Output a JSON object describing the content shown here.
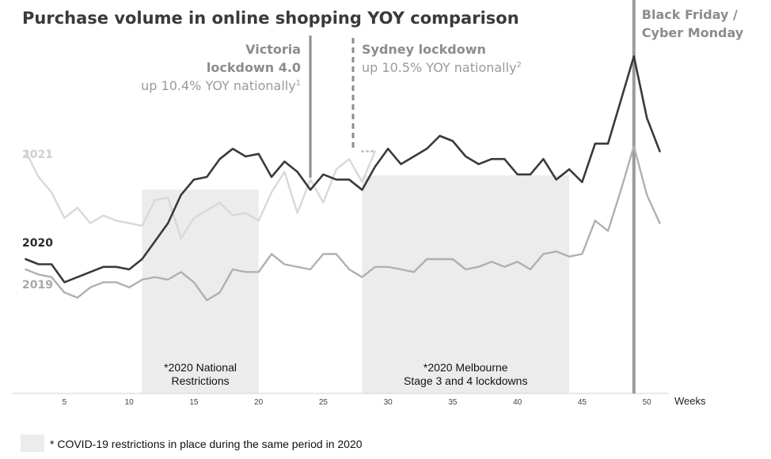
{
  "chart_data": {
    "type": "line",
    "title": "Purchase volume in online shopping YOY comparison",
    "xlabel": "Weeks",
    "ylabel": "",
    "x_ticks": [
      5,
      10,
      15,
      20,
      25,
      30,
      35,
      40,
      45,
      50
    ],
    "xlim": [
      1,
      52
    ],
    "ylim": [
      0,
      100
    ],
    "grid": false,
    "series": [
      {
        "name": "2019",
        "label": "2019",
        "color": "#b0b0b0",
        "x": [
          2,
          3,
          4,
          5,
          6,
          7,
          8,
          9,
          10,
          11,
          12,
          13,
          14,
          15,
          16,
          17,
          18,
          19,
          20,
          21,
          22,
          23,
          24,
          25,
          26,
          27,
          28,
          29,
          30,
          31,
          32,
          33,
          34,
          35,
          36,
          37,
          38,
          39,
          40,
          41,
          42,
          43,
          44,
          45,
          46,
          47,
          48,
          49,
          50,
          51
        ],
        "values": [
          36,
          34,
          33,
          27,
          25,
          29,
          31,
          31,
          29,
          32,
          33,
          32,
          35,
          31,
          24,
          27,
          36,
          35,
          35,
          42,
          38,
          37,
          36,
          42,
          42,
          36,
          33,
          37,
          37,
          36,
          35,
          40,
          40,
          40,
          36,
          37,
          39,
          37,
          39,
          36,
          42,
          43,
          41,
          42,
          55,
          51,
          67,
          84,
          65,
          54
        ]
      },
      {
        "name": "2020",
        "label": "2020",
        "color": "#3a3a3a",
        "x": [
          2,
          3,
          4,
          5,
          6,
          7,
          8,
          9,
          10,
          11,
          12,
          13,
          14,
          15,
          16,
          17,
          18,
          19,
          20,
          21,
          22,
          23,
          24,
          25,
          26,
          27,
          28,
          29,
          30,
          31,
          32,
          33,
          34,
          35,
          36,
          37,
          38,
          39,
          40,
          41,
          42,
          43,
          44,
          45,
          46,
          47,
          48,
          49,
          50,
          51
        ],
        "values": [
          40,
          38,
          38,
          31,
          33,
          35,
          37,
          37,
          36,
          40,
          47,
          54,
          65,
          71,
          72,
          79,
          83,
          80,
          81,
          72,
          78,
          74,
          67,
          73,
          71,
          71,
          67,
          76,
          83,
          77,
          80,
          83,
          88,
          86,
          80,
          77,
          79,
          79,
          73,
          73,
          79,
          71,
          75,
          70,
          85,
          85,
          102,
          119,
          95,
          82
        ]
      },
      {
        "name": "2021",
        "label": "2021",
        "color": "#d8d8d8",
        "x": [
          2,
          3,
          4,
          5,
          6,
          7,
          8,
          9,
          10,
          11,
          12,
          13,
          14,
          15,
          16,
          17,
          18,
          19,
          20,
          21,
          22,
          23,
          24,
          25,
          26,
          27,
          28,
          29
        ],
        "values": [
          82,
          72,
          66,
          56,
          60,
          54,
          57,
          55,
          54,
          53,
          63,
          64,
          48,
          56,
          59,
          62,
          57,
          58,
          55,
          66,
          74,
          58,
          71,
          62,
          75,
          79,
          70,
          82
        ]
      },
      {
        "name": "2021-dotted",
        "dotted": true,
        "color": "#c4c4c4",
        "x": [
          28,
          29
        ],
        "values": [
          82,
          82
        ]
      }
    ],
    "shaded_regions": [
      {
        "x0": 11,
        "x1": 20,
        "label_lines": [
          "*2020 National",
          "Restrictions"
        ]
      },
      {
        "x0": 28,
        "x1": 44,
        "label_lines": [
          "*2020 Melbourne",
          "Stage 3 and 4 lockdowns"
        ]
      }
    ],
    "event_lines": [
      {
        "x": 24,
        "style": "solid",
        "color": "#8c8c8c",
        "label_bold": [
          "Victoria",
          "lockdown 4.0"
        ],
        "label_regular": "up 10.4% YOY nationally",
        "superscript": "1",
        "align": "right"
      },
      {
        "x": 27.3,
        "style": "dashed",
        "color": "#8c8c8c",
        "label_bold": [
          "Sydney lockdown"
        ],
        "label_regular": "up 10.5% YOY nationally",
        "superscript": "2",
        "align": "left"
      },
      {
        "x": 49,
        "style": "solid",
        "color": "#9a9a9a",
        "label_bold": [
          "Black Friday /",
          "Cyber Monday"
        ],
        "label_regular": "",
        "superscript": "",
        "align": "left"
      }
    ],
    "legend_note": "* COVID-19 restrictions in place during the same period in 2020"
  }
}
